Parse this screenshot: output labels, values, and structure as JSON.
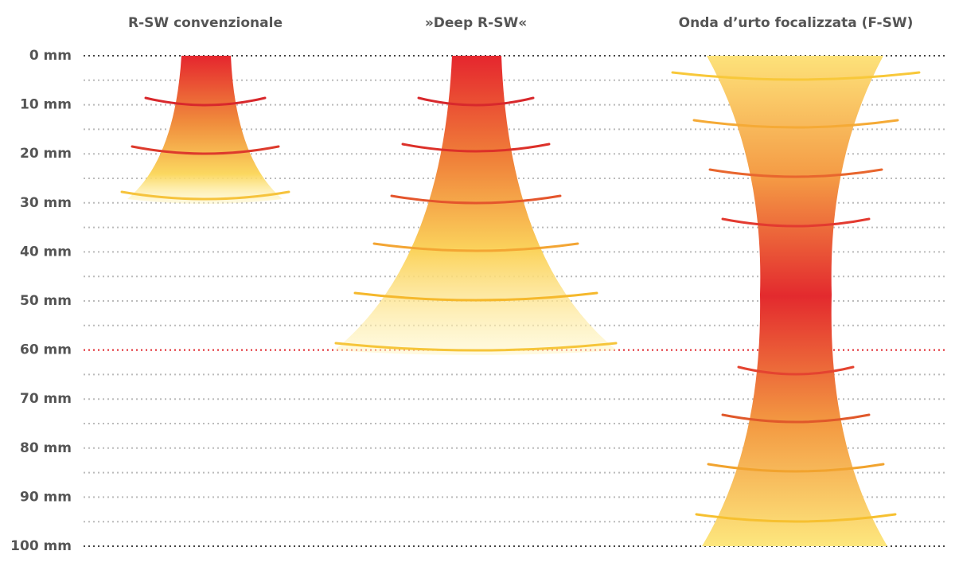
{
  "columns": [
    {
      "title": "R-SW convenzionale"
    },
    {
      "title": "»Deep R-SW«"
    },
    {
      "title": "Onda d’urto focalizzata (F-SW)"
    }
  ],
  "depth_labels": [
    "0 mm",
    "10 mm",
    "20 mm",
    "30 mm",
    "40 mm",
    "50 mm",
    "60 mm",
    "70 mm",
    "80 mm",
    "90 mm",
    "100 mm"
  ]
}
